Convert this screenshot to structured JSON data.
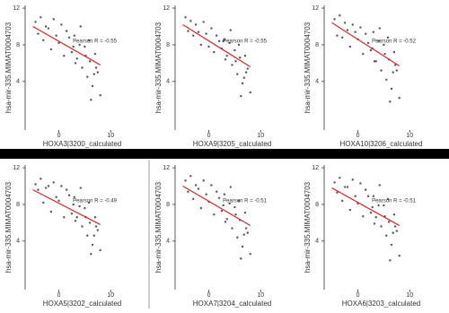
{
  "chart_data": [
    {
      "type": "scatter",
      "x_label": "HOXA3|3200_calculated",
      "y_label": "hsa-mir-335.MIMAT0004703",
      "annotation": "Pearson R = -0.55",
      "x": [
        -4.5,
        -4,
        -3.5,
        -3,
        -2.5,
        -2,
        -1.5,
        -1,
        -0.5,
        0,
        0.5,
        1,
        1.5,
        2,
        2.5,
        3,
        3.5,
        4,
        4.5,
        5,
        5.5,
        6,
        6.5,
        7,
        7.5,
        8,
        4.2,
        5.8,
        6.8,
        3.2,
        6.2,
        7.2,
        5.2,
        2.8
      ],
      "values": [
        10.5,
        9.2,
        11,
        8.5,
        10,
        9.8,
        7.5,
        10.8,
        9,
        8.2,
        10.2,
        6.8,
        9.5,
        8.8,
        7.2,
        9,
        6.5,
        8,
        5.5,
        7.8,
        4.5,
        6.2,
        3.5,
        7,
        5,
        2.5,
        10,
        8.5,
        4.8,
        6,
        2,
        5.5,
        6.8,
        7.8
      ],
      "trend_line": {
        "x": [
          -5,
          8
        ],
        "y": [
          10,
          5.8
        ]
      },
      "point_color": "#555555",
      "line_color": "#d62728",
      "xlim": [
        -6.5,
        15.5
      ],
      "ylim": [
        -1.3,
        12.3
      ],
      "xticks": [
        0,
        10
      ],
      "yticks": [
        4,
        8,
        12
      ]
    },
    {
      "type": "scatter",
      "x_label": "HOXA9|3205_calculated",
      "y_label": "hsa-mir-335.MIMAT0004703",
      "annotation": "Pearson R = -0.55",
      "x": [
        -4.5,
        -4,
        -3.5,
        -3,
        -2.5,
        -2,
        -1.5,
        -1,
        -0.5,
        0,
        0.5,
        1,
        1.5,
        2,
        2.5,
        3,
        3.5,
        4,
        4.5,
        5,
        5.5,
        6,
        6.5,
        7,
        7.5,
        8,
        4.2,
        5.8,
        6.8,
        3.2,
        6.2,
        7.2,
        5.2,
        2.8
      ],
      "values": [
        11,
        9.5,
        10.6,
        9,
        10.2,
        9.4,
        8,
        10.5,
        9.2,
        7.8,
        9.8,
        7.2,
        9,
        8.4,
        7.6,
        8.6,
        6.8,
        8.2,
        5.8,
        7.4,
        4.8,
        6.6,
        3.8,
        6.8,
        5.4,
        2.8,
        9.6,
        8,
        4.4,
        6.4,
        2.4,
        5,
        6.2,
        8.4
      ],
      "trend_line": {
        "x": [
          -5,
          8
        ],
        "y": [
          10.2,
          5.6
        ]
      },
      "point_color": "#555555",
      "line_color": "#d62728",
      "xlim": [
        -6.5,
        15.5
      ],
      "ylim": [
        -1.3,
        12.3
      ],
      "xticks": [
        0,
        10
      ],
      "yticks": [
        4,
        8,
        12
      ]
    },
    {
      "type": "scatter",
      "x_label": "HOXA10|3206_calculated",
      "y_label": "hsa-mir-335.MIMAT0004703",
      "annotation": "Pearson R = -0.52",
      "x": [
        -4.5,
        -4,
        -3.5,
        -3,
        -2.5,
        -2,
        -1.5,
        -1,
        -0.5,
        0,
        0.5,
        1,
        1.5,
        2,
        2.5,
        3,
        3.5,
        4,
        4.5,
        5,
        5.5,
        6,
        6.5,
        7,
        7.5,
        8,
        4.2,
        5.8,
        6.8,
        3.2,
        6.2,
        7.2,
        5.2,
        2.8
      ],
      "values": [
        10.8,
        9,
        11.2,
        8.8,
        10.4,
        9.6,
        7.8,
        10.2,
        9.4,
        8.6,
        9.9,
        7,
        9.2,
        8.2,
        7.4,
        9.4,
        6.2,
        8.4,
        5.2,
        8,
        4.2,
        6.4,
        3.2,
        7.2,
        5.2,
        2.2,
        9.8,
        8.8,
        5,
        6.2,
        1.8,
        5.8,
        7,
        7.6
      ],
      "trend_line": {
        "x": [
          -5,
          8
        ],
        "y": [
          10.4,
          5.7
        ]
      },
      "point_color": "#555555",
      "line_color": "#d62728",
      "xlim": [
        -6.5,
        15.5
      ],
      "ylim": [
        -1.3,
        12.3
      ],
      "xticks": [
        0,
        10
      ],
      "yticks": [
        4,
        8,
        12
      ]
    },
    {
      "type": "scatter",
      "x_label": "HOXA5|3202_calculated",
      "y_label": "hsa-mir-335.MIMAT0004703",
      "annotation": "Pearson R = -0.49",
      "x": [
        -4.5,
        -4,
        -3.5,
        -3,
        -2.5,
        -2,
        -1.5,
        -1,
        -0.5,
        0,
        0.5,
        1,
        1.5,
        2,
        2.5,
        3,
        3.5,
        4,
        4.5,
        5,
        5.5,
        6,
        6.5,
        7,
        7.5,
        8,
        4.2,
        5.8,
        6.8,
        3.2,
        6.2,
        7.2,
        5.2,
        2.8
      ],
      "values": [
        10.2,
        9.6,
        10.8,
        8.2,
        9.8,
        10,
        7.2,
        10.4,
        8.8,
        8.4,
        10,
        6.6,
        9.6,
        9,
        7,
        8.8,
        6.6,
        7.8,
        5.6,
        7.6,
        4.6,
        6,
        3.6,
        6.6,
        5.2,
        3,
        9.8,
        8.2,
        4.6,
        6.2,
        2.6,
        5.6,
        6.6,
        8
      ],
      "trend_line": {
        "x": [
          -5,
          8
        ],
        "y": [
          9.6,
          5.8
        ]
      },
      "point_color": "#555555",
      "line_color": "#d62728",
      "xlim": [
        -6.5,
        15.5
      ],
      "ylim": [
        -1.3,
        12.3
      ],
      "xticks": [
        0,
        10
      ],
      "yticks": [
        4,
        8,
        12
      ]
    },
    {
      "type": "scatter",
      "x_label": "HOXA7|3204_calculated",
      "y_label": "hsa-mir-335.MIMAT0004703",
      "annotation": "Pearson R = -0.51",
      "x": [
        -4.5,
        -4,
        -3.5,
        -3,
        -2.5,
        -2,
        -1.5,
        -1,
        -0.5,
        0,
        0.5,
        1,
        1.5,
        2,
        2.5,
        3,
        3.5,
        4,
        4.5,
        5,
        5.5,
        6,
        6.5,
        7,
        7.5,
        8,
        4.2,
        5.8,
        6.8,
        3.2,
        6.2,
        7.2,
        5.2,
        2.8
      ],
      "values": [
        10.6,
        9.4,
        11.1,
        8.6,
        10.1,
        9.7,
        7.6,
        10.6,
        9.1,
        8.3,
        10.1,
        6.9,
        9.4,
        8.7,
        7.3,
        9.1,
        6.4,
        8.1,
        5.4,
        7.7,
        4.4,
        6.3,
        3.4,
        7.1,
        4.9,
        2.6,
        9.9,
        8.4,
        4.7,
        6.1,
        2.1,
        5.4,
        6.9,
        7.9
      ],
      "trend_line": {
        "x": [
          -5,
          8
        ],
        "y": [
          10,
          5.7
        ]
      },
      "point_color": "#555555",
      "line_color": "#d62728",
      "xlim": [
        -6.5,
        15.5
      ],
      "ylim": [
        -1.3,
        12.3
      ],
      "xticks": [
        0,
        10
      ],
      "yticks": [
        4,
        8,
        12
      ]
    },
    {
      "type": "scatter",
      "x_label": "HOXA6|3203_calculated",
      "y_label": "hsa-mir-335.MIMAT0004703",
      "annotation": "Pearson R = -0.51",
      "x": [
        -4.5,
        -4,
        -3.5,
        -3,
        -2.5,
        -2,
        -1.5,
        -1,
        -0.5,
        0,
        0.5,
        1,
        1.5,
        2,
        2.5,
        3,
        3.5,
        4,
        4.5,
        5,
        5.5,
        6,
        6.5,
        7,
        7.5,
        8,
        4.2,
        5.8,
        6.8,
        3.2,
        6.2,
        7.2,
        5.2,
        2.8
      ],
      "values": [
        10.4,
        9.3,
        10.9,
        8.4,
        9.9,
        9.9,
        7.4,
        10.7,
        8.9,
        8.1,
        10.3,
        6.7,
        9.6,
        8.9,
        7.1,
        8.9,
        6.6,
        7.9,
        5.6,
        7.9,
        4.6,
        6.1,
        3.6,
        6.9,
        5.1,
        2.4,
        10.1,
        8.6,
        4.9,
        5.9,
        1.9,
        5.6,
        6.7,
        7.7
      ],
      "trend_line": {
        "x": [
          -5,
          8
        ],
        "y": [
          9.8,
          5.7
        ]
      },
      "point_color": "#555555",
      "line_color": "#d62728",
      "xlim": [
        -6.5,
        15.5
      ],
      "ylim": [
        -1.3,
        12.3
      ],
      "xticks": [
        0,
        10
      ],
      "yticks": [
        4,
        8,
        12
      ]
    }
  ]
}
